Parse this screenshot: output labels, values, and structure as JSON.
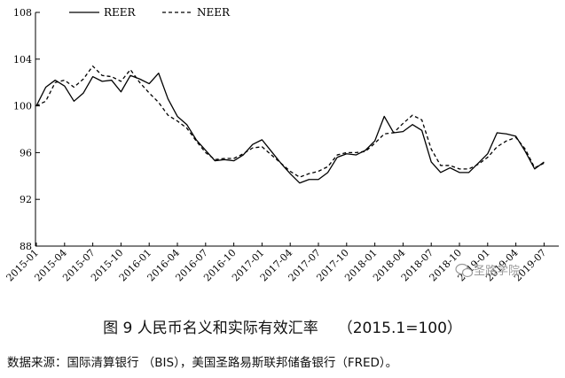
{
  "chart_data": {
    "type": "line",
    "title": "",
    "xlabel": "",
    "ylabel": "",
    "ylim": [
      88,
      108
    ],
    "yticks": [
      88,
      92,
      96,
      100,
      104,
      108
    ],
    "x_tick_labels": [
      "2015-01",
      "2015-04",
      "2015-07",
      "2015-10",
      "2016-01",
      "2016-04",
      "2016-07",
      "2016-10",
      "2017-01",
      "2017-04",
      "2017-07",
      "2017-10",
      "2018-01",
      "2018-04",
      "2018-07",
      "2018-10",
      "2019-01",
      "2019-04",
      "2019-07"
    ],
    "x": [
      "2015-01",
      "2015-02",
      "2015-03",
      "2015-04",
      "2015-05",
      "2015-06",
      "2015-07",
      "2015-08",
      "2015-09",
      "2015-10",
      "2015-11",
      "2015-12",
      "2016-01",
      "2016-02",
      "2016-03",
      "2016-04",
      "2016-05",
      "2016-06",
      "2016-07",
      "2016-08",
      "2016-09",
      "2016-10",
      "2016-11",
      "2016-12",
      "2017-01",
      "2017-02",
      "2017-03",
      "2017-04",
      "2017-05",
      "2017-06",
      "2017-07",
      "2017-08",
      "2017-09",
      "2017-10",
      "2017-11",
      "2017-12",
      "2018-01",
      "2018-02",
      "2018-03",
      "2018-04",
      "2018-05",
      "2018-06",
      "2018-07",
      "2018-08",
      "2018-09",
      "2018-10",
      "2018-11",
      "2018-12",
      "2019-01",
      "2019-02",
      "2019-03",
      "2019-04",
      "2019-05",
      "2019-06",
      "2019-07"
    ],
    "series": [
      {
        "name": "REER",
        "style": "solid",
        "values": [
          100.0,
          101.6,
          102.2,
          101.7,
          100.4,
          101.1,
          102.5,
          102.1,
          102.2,
          101.2,
          102.6,
          102.3,
          101.9,
          102.8,
          100.6,
          99.1,
          98.4,
          97.1,
          96.2,
          95.3,
          95.4,
          95.3,
          95.8,
          96.7,
          97.1,
          96.1,
          95.1,
          94.2,
          93.4,
          93.7,
          93.7,
          94.3,
          95.6,
          95.9,
          95.8,
          96.2,
          97.0,
          99.1,
          97.7,
          97.8,
          98.4,
          97.9,
          95.2,
          94.3,
          94.7,
          94.3,
          94.3,
          95.1,
          95.9,
          97.7,
          97.6,
          97.4,
          96.1,
          94.6,
          95.2
        ]
      },
      {
        "name": "NEER",
        "style": "dashed",
        "values": [
          100.0,
          100.4,
          102.0,
          102.2,
          101.6,
          102.3,
          103.4,
          102.6,
          102.5,
          102.1,
          103.1,
          102.0,
          101.1,
          100.3,
          99.2,
          98.7,
          98.1,
          97.0,
          96.0,
          95.4,
          95.5,
          95.5,
          95.9,
          96.4,
          96.5,
          95.8,
          95.1,
          94.4,
          93.9,
          94.2,
          94.4,
          94.8,
          95.8,
          96.0,
          96.0,
          96.1,
          96.8,
          97.6,
          97.7,
          98.5,
          99.2,
          98.8,
          96.3,
          94.9,
          94.9,
          94.6,
          94.6,
          95.0,
          95.6,
          96.5,
          97.0,
          97.3,
          96.3,
          94.7,
          95.1
        ]
      }
    ],
    "grid": false,
    "legend_position": "top-left"
  },
  "colors": {
    "line": "#000000",
    "axis": "#000000",
    "watermark": "#9a9a9a"
  },
  "watermark": {
    "icon": "wechat-icon",
    "text": "圣路学院"
  },
  "caption": {
    "title": "图 9  人民币名义和实际有效汇率",
    "ratio": "（2015.1=100）"
  },
  "source": "数据来源：国际清算银行   （BIS），美国圣路易斯联邦储备银行（FRED）。"
}
